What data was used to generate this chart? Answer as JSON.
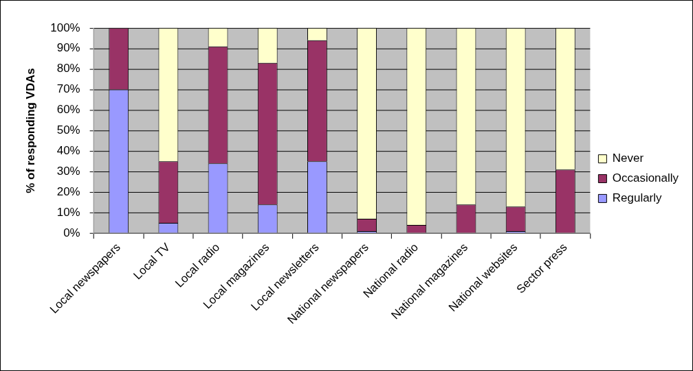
{
  "chart_data": {
    "type": "bar",
    "stacked": true,
    "ylabel": "% of responding VDAs",
    "categories": [
      "Local newspapers",
      "Local TV",
      "Local radio",
      "Local magazines",
      "Local newsletters",
      "National newspapers",
      "National radio",
      "National magazines",
      "National websites",
      "Sector press"
    ],
    "series": [
      {
        "name": "Regularly",
        "color": "#9999ff",
        "values": [
          70,
          5,
          34,
          14,
          35,
          1,
          0,
          0,
          1,
          0
        ]
      },
      {
        "name": "Occasionally",
        "color": "#993366",
        "values": [
          30,
          30,
          57,
          69,
          59,
          6,
          4,
          14,
          12,
          31
        ]
      },
      {
        "name": "Never",
        "color": "#ffffcc",
        "values": [
          0,
          65,
          9,
          17,
          6,
          93,
          96,
          86,
          87,
          69
        ]
      }
    ],
    "ylim": [
      0,
      100
    ],
    "yticks": [
      {
        "value": 0,
        "label": "0%"
      },
      {
        "value": 10,
        "label": "10%"
      },
      {
        "value": 20,
        "label": "20%"
      },
      {
        "value": 30,
        "label": "30%"
      },
      {
        "value": 40,
        "label": "40%"
      },
      {
        "value": 50,
        "label": "50%"
      },
      {
        "value": 60,
        "label": "60%"
      },
      {
        "value": 70,
        "label": "70%"
      },
      {
        "value": 80,
        "label": "80%"
      },
      {
        "value": 90,
        "label": "90%"
      },
      {
        "value": 100,
        "label": "100%"
      }
    ],
    "grid": "y",
    "legend": "right"
  }
}
